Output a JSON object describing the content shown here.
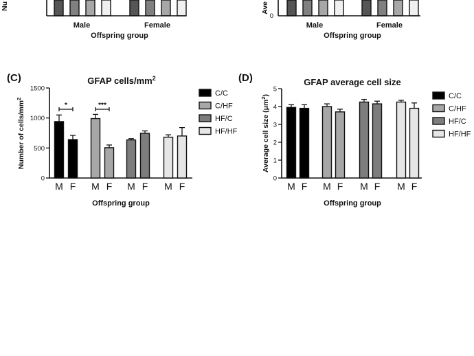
{
  "colors": {
    "C/C": "#000000",
    "C/HF": "#a7a7a7",
    "HF/C": "#7d7d7d",
    "HF/HF": "#e6e6e6"
  },
  "top_partial": {
    "left": {
      "ylabel_visible": "Nu",
      "groups": [
        "Male",
        "Female"
      ],
      "xlabel": "Offspring group"
    },
    "right": {
      "ylabel_visible": "Ave",
      "groups": [
        "Male",
        "Female"
      ],
      "xlabel": "Offspring group"
    },
    "bar_colors": [
      "#555555",
      "#808080",
      "#a7a7a7",
      "#f0f0f0"
    ]
  },
  "chart_data": [
    {
      "panel": "(C)",
      "type": "bar",
      "title": "GFAP cells/mm²",
      "xlabel": "Offspring group",
      "ylabel": "Number of cells/mm²",
      "ylim": [
        0,
        1500
      ],
      "yticks": [
        0,
        500,
        1000,
        1500
      ],
      "grid": false,
      "legend_position": "right",
      "legend": [
        "C/C",
        "C/HF",
        "HF/C",
        "HF/HF"
      ],
      "categories": [
        "M",
        "F"
      ],
      "series": [
        {
          "name": "C/C",
          "values": [
            940,
            640
          ],
          "errors": [
            110,
            70
          ]
        },
        {
          "name": "C/HF",
          "values": [
            990,
            505
          ],
          "errors": [
            70,
            45
          ]
        },
        {
          "name": "HF/C",
          "values": [
            635,
            745
          ],
          "errors": [
            20,
            40
          ]
        },
        {
          "name": "HF/HF",
          "values": [
            680,
            700
          ],
          "errors": [
            40,
            140
          ]
        }
      ],
      "annotations": [
        {
          "text": "*",
          "series": "C/C",
          "y": 1145
        },
        {
          "text": "***",
          "series": "C/HF",
          "y": 1145
        }
      ]
    },
    {
      "panel": "(D)",
      "type": "bar",
      "title": "GFAP average cell size",
      "xlabel": "Offspring group",
      "ylabel": "Average cell size (μm²)",
      "ylim": [
        0,
        5
      ],
      "yticks": [
        0,
        1,
        2,
        3,
        4,
        5
      ],
      "grid": false,
      "legend_position": "right",
      "legend": [
        "C/C",
        "C/HF",
        "HF/C",
        "HF/HF"
      ],
      "categories": [
        "M",
        "F"
      ],
      "series": [
        {
          "name": "C/C",
          "values": [
            3.95,
            3.9
          ],
          "errors": [
            0.15,
            0.2
          ]
        },
        {
          "name": "C/HF",
          "values": [
            4.0,
            3.7
          ],
          "errors": [
            0.15,
            0.15
          ]
        },
        {
          "name": "HF/C",
          "values": [
            4.25,
            4.15
          ],
          "errors": [
            0.15,
            0.15
          ]
        },
        {
          "name": "HF/HF",
          "values": [
            4.25,
            3.9
          ],
          "errors": [
            0.1,
            0.3
          ]
        }
      ],
      "annotations": []
    }
  ]
}
